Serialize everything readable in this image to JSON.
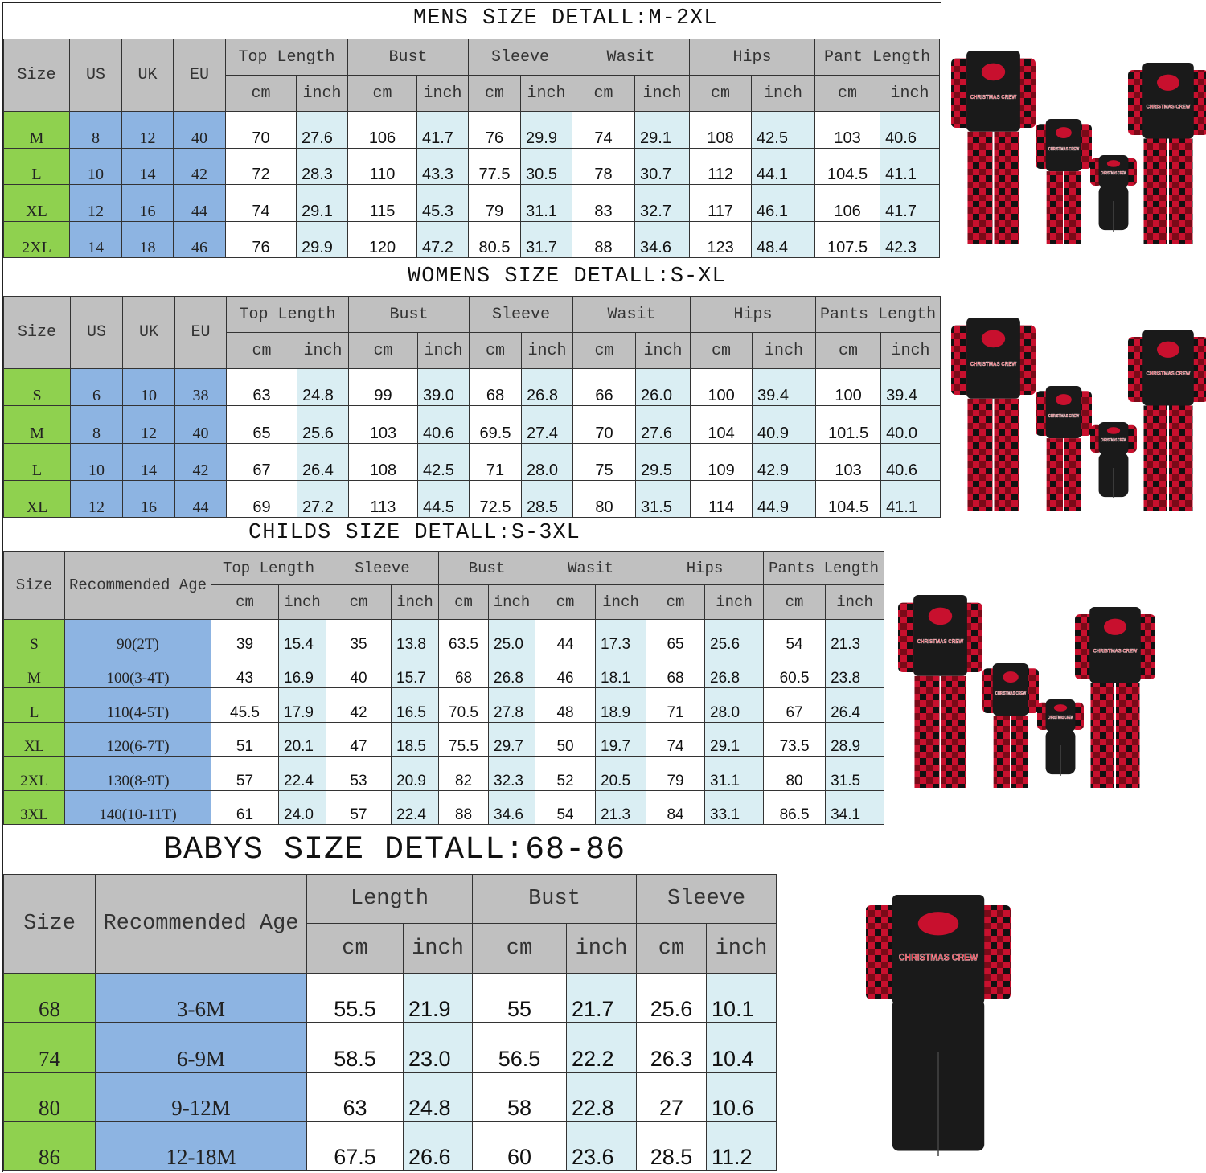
{
  "colors": {
    "header_gray": "#c0c0c0",
    "size_green": "#8fd14f",
    "fixed_blue": "#8db4e2",
    "inch_lightblue": "#daeef3",
    "shirt_black": "#1a1a1a",
    "plaid_red": "#c8102e"
  },
  "images": {
    "print_text": "CHRISTMAS CREW",
    "description_icon": "family-pajama-photo"
  },
  "mens": {
    "title": "MENS SIZE DETALL:M-2XL",
    "fixed_headers": [
      "Size",
      "US",
      "UK",
      "EU"
    ],
    "groups": [
      "Top Length",
      "Bust",
      "Sleeve",
      "Wasit",
      "Hips",
      "Pant Length"
    ],
    "units": [
      "cm",
      "inch"
    ],
    "rows": [
      [
        "M",
        "8",
        "12",
        "40",
        "70",
        "27.6",
        "106",
        "41.7",
        "76",
        "29.9",
        "74",
        "29.1",
        "108",
        "42.5",
        "103",
        "40.6"
      ],
      [
        "L",
        "10",
        "14",
        "42",
        "72",
        "28.3",
        "110",
        "43.3",
        "77.5",
        "30.5",
        "78",
        "30.7",
        "112",
        "44.1",
        "104.5",
        "41.1"
      ],
      [
        "XL",
        "12",
        "16",
        "44",
        "74",
        "29.1",
        "115",
        "45.3",
        "79",
        "31.1",
        "83",
        "32.7",
        "117",
        "46.1",
        "106",
        "41.7"
      ],
      [
        "2XL",
        "14",
        "18",
        "46",
        "76",
        "29.9",
        "120",
        "47.2",
        "80.5",
        "31.7",
        "88",
        "34.6",
        "123",
        "48.4",
        "107.5",
        "42.3"
      ]
    ]
  },
  "womens": {
    "title": "WOMENS SIZE DETALL:S-XL",
    "fixed_headers": [
      "Size",
      "US",
      "UK",
      "EU"
    ],
    "groups": [
      "Top Length",
      "Bust",
      "Sleeve",
      "Wasit",
      "Hips",
      "Pants Length"
    ],
    "units": [
      "cm",
      "inch"
    ],
    "rows": [
      [
        "S",
        "6",
        "10",
        "38",
        "63",
        "24.8",
        "99",
        "39.0",
        "68",
        "26.8",
        "66",
        "26.0",
        "100",
        "39.4",
        "100",
        "39.4"
      ],
      [
        "M",
        "8",
        "12",
        "40",
        "65",
        "25.6",
        "103",
        "40.6",
        "69.5",
        "27.4",
        "70",
        "27.6",
        "104",
        "40.9",
        "101.5",
        "40.0"
      ],
      [
        "L",
        "10",
        "14",
        "42",
        "67",
        "26.4",
        "108",
        "42.5",
        "71",
        "28.0",
        "75",
        "29.5",
        "109",
        "42.9",
        "103",
        "40.6"
      ],
      [
        "XL",
        "12",
        "16",
        "44",
        "69",
        "27.2",
        "113",
        "44.5",
        "72.5",
        "28.5",
        "80",
        "31.5",
        "114",
        "44.9",
        "104.5",
        "41.1"
      ]
    ]
  },
  "childs": {
    "title": "CHILDS SIZE DETALL:S-3XL",
    "fixed_headers": [
      "Size",
      "Recommended Age"
    ],
    "groups": [
      "Top Length",
      "Sleeve",
      "Bust",
      "Wasit",
      "Hips",
      "Pants Length"
    ],
    "units": [
      "cm",
      "inch"
    ],
    "rows": [
      [
        "S",
        "90(2T)",
        "39",
        "15.4",
        "35",
        "13.8",
        "63.5",
        "25.0",
        "44",
        "17.3",
        "65",
        "25.6",
        "54",
        "21.3"
      ],
      [
        "M",
        "100(3-4T)",
        "43",
        "16.9",
        "40",
        "15.7",
        "68",
        "26.8",
        "46",
        "18.1",
        "68",
        "26.8",
        "60.5",
        "23.8"
      ],
      [
        "L",
        "110(4-5T)",
        "45.5",
        "17.9",
        "42",
        "16.5",
        "70.5",
        "27.8",
        "48",
        "18.9",
        "71",
        "28.0",
        "67",
        "26.4"
      ],
      [
        "XL",
        "120(6-7T)",
        "51",
        "20.1",
        "47",
        "18.5",
        "75.5",
        "29.7",
        "50",
        "19.7",
        "74",
        "29.1",
        "73.5",
        "28.9"
      ],
      [
        "2XL",
        "130(8-9T)",
        "57",
        "22.4",
        "53",
        "20.9",
        "82",
        "32.3",
        "52",
        "20.5",
        "79",
        "31.1",
        "80",
        "31.5"
      ],
      [
        "3XL",
        "140(10-11T)",
        "61",
        "24.0",
        "57",
        "22.4",
        "88",
        "34.6",
        "54",
        "21.3",
        "84",
        "33.1",
        "86.5",
        "34.1"
      ]
    ]
  },
  "babys": {
    "title": "BABYS SIZE DETALL:68-86",
    "fixed_headers": [
      "Size",
      "Recommended Age"
    ],
    "groups": [
      "Length",
      "Bust",
      "Sleeve"
    ],
    "units": [
      "cm",
      "inch"
    ],
    "rows": [
      [
        "68",
        "3-6M",
        "55.5",
        "21.9",
        "55",
        "21.7",
        "25.6",
        "10.1"
      ],
      [
        "74",
        "6-9M",
        "58.5",
        "23.0",
        "56.5",
        "22.2",
        "26.3",
        "10.4"
      ],
      [
        "80",
        "9-12M",
        "63",
        "24.8",
        "58",
        "22.8",
        "27",
        "10.6"
      ],
      [
        "86",
        "12-18M",
        "67.5",
        "26.6",
        "60",
        "23.6",
        "28.5",
        "11.2"
      ]
    ]
  }
}
